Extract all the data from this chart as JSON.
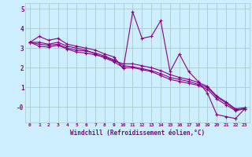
{
  "x": [
    0,
    1,
    2,
    3,
    4,
    5,
    6,
    7,
    8,
    9,
    10,
    11,
    12,
    13,
    14,
    15,
    16,
    17,
    18,
    19,
    20,
    21,
    22,
    23
  ],
  "line1": [
    3.3,
    3.6,
    3.4,
    3.5,
    3.2,
    3.1,
    3.0,
    2.9,
    2.7,
    2.55,
    1.95,
    4.85,
    3.5,
    3.6,
    4.4,
    1.8,
    2.7,
    1.8,
    1.3,
    0.7,
    -0.4,
    -0.5,
    -0.6,
    -0.1
  ],
  "line2": [
    3.3,
    3.3,
    3.2,
    3.3,
    3.1,
    3.0,
    2.9,
    2.7,
    2.5,
    2.3,
    2.0,
    2.0,
    1.9,
    1.8,
    1.6,
    1.4,
    1.3,
    1.2,
    1.1,
    0.9,
    0.4,
    0.1,
    -0.2,
    -0.1
  ],
  "line3": [
    3.3,
    3.2,
    3.15,
    3.2,
    3.0,
    2.9,
    2.85,
    2.75,
    2.6,
    2.4,
    2.1,
    2.05,
    1.95,
    1.85,
    1.7,
    1.5,
    1.4,
    1.3,
    1.15,
    1.0,
    0.5,
    0.2,
    -0.15,
    -0.1
  ],
  "line4": [
    3.3,
    3.1,
    3.05,
    3.15,
    2.95,
    2.8,
    2.75,
    2.65,
    2.55,
    2.35,
    2.2,
    2.2,
    2.1,
    2.0,
    1.85,
    1.65,
    1.5,
    1.4,
    1.25,
    1.05,
    0.55,
    0.25,
    -0.1,
    -0.05
  ],
  "color": "#880088",
  "bg_color": "#cceeff",
  "grid_color": "#aacccc",
  "xlabel": "Windchill (Refroidissement éolien,°C)",
  "xlim": [
    -0.5,
    23.5
  ],
  "ylim": [
    -0.8,
    5.3
  ],
  "yticks": [
    0,
    1,
    2,
    3,
    4,
    5
  ],
  "ytick_labels": [
    "-0",
    "1",
    "2",
    "3",
    "4",
    "5"
  ],
  "xticks": [
    0,
    1,
    2,
    3,
    4,
    5,
    6,
    7,
    8,
    9,
    10,
    11,
    12,
    13,
    14,
    15,
    16,
    17,
    18,
    19,
    20,
    21,
    22,
    23
  ]
}
